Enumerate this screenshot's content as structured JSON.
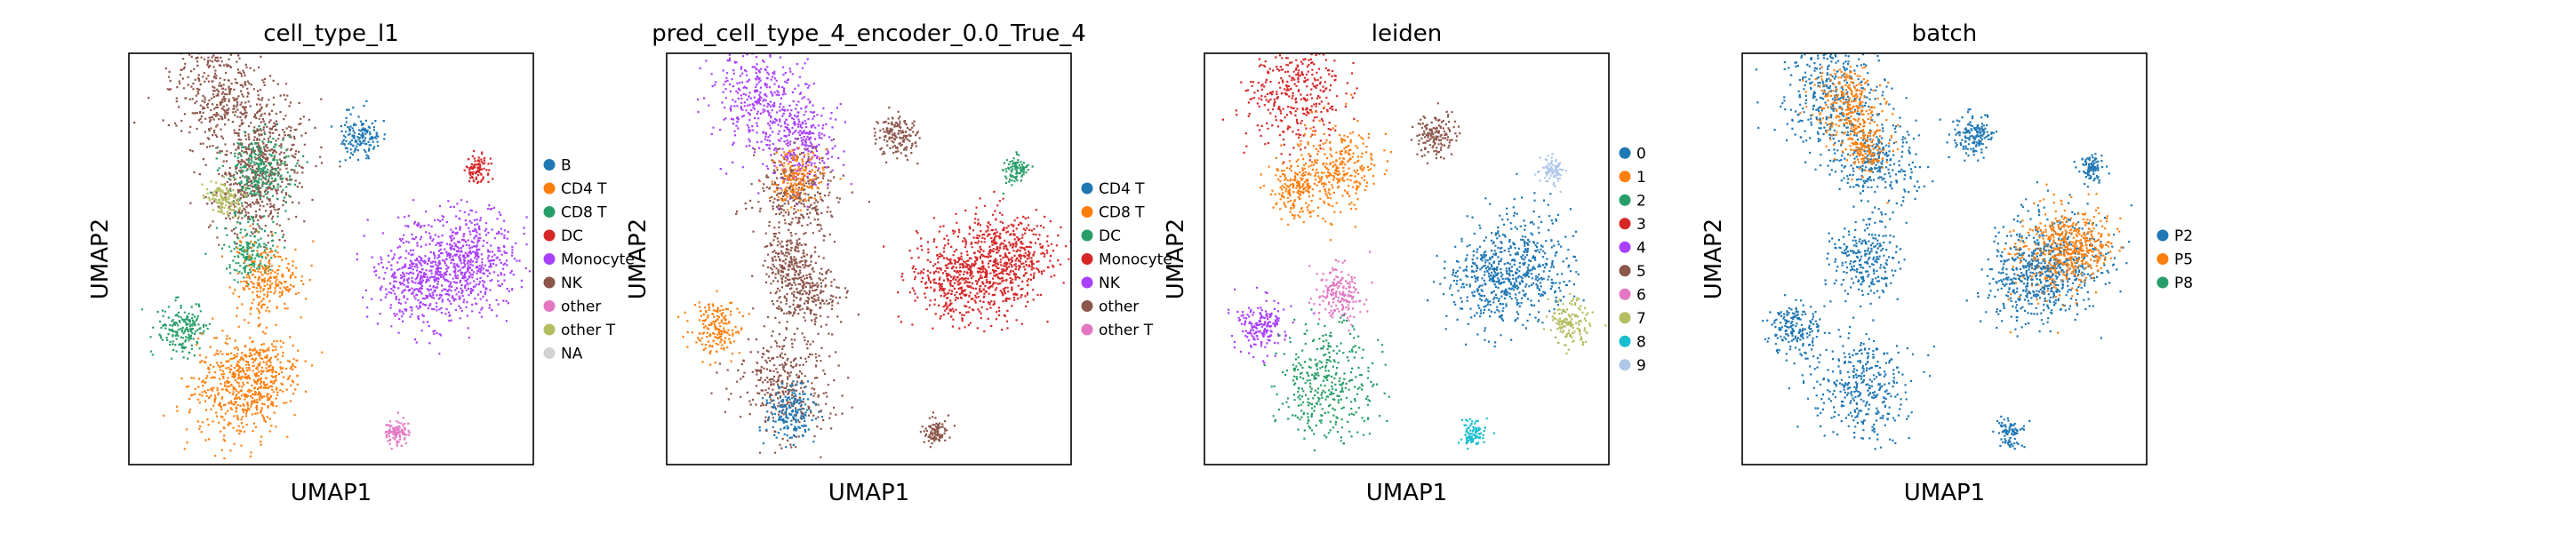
{
  "chart_data": [
    {
      "type": "scatter",
      "title": "cell_type_l1",
      "xlabel": "UMAP1",
      "ylabel": "UMAP2",
      "legend": [
        {
          "label": "B",
          "color": "#1f77b4"
        },
        {
          "label": "CD4 T",
          "color": "#ff7f0e"
        },
        {
          "label": "CD8 T",
          "color": "#279e68"
        },
        {
          "label": "DC",
          "color": "#d62728"
        },
        {
          "label": "Monocyte",
          "color": "#aa40fc"
        },
        {
          "label": "NK",
          "color": "#8c564b"
        },
        {
          "label": "other",
          "color": "#e377c2"
        },
        {
          "label": "other T",
          "color": "#b5bd61"
        },
        {
          "label": "NA",
          "color": "#d3d3d3"
        }
      ],
      "legend_position": "right",
      "clusters": [
        {
          "label": "NK",
          "x": 0.22,
          "y": 0.09,
          "spread": 0.06
        },
        {
          "label": "NK",
          "x": 0.33,
          "y": 0.22,
          "spread": 0.06
        },
        {
          "label": "NK",
          "x": 0.3,
          "y": 0.34,
          "spread": 0.05
        },
        {
          "label": "CD8 T",
          "x": 0.3,
          "y": 0.48,
          "spread": 0.03
        },
        {
          "label": "CD8 T",
          "x": 0.32,
          "y": 0.28,
          "spread": 0.04
        },
        {
          "label": "other T",
          "x": 0.23,
          "y": 0.35,
          "spread": 0.02
        },
        {
          "label": "CD8 T",
          "x": 0.13,
          "y": 0.67,
          "spread": 0.03
        },
        {
          "label": "CD4 T",
          "x": 0.34,
          "y": 0.55,
          "spread": 0.04
        },
        {
          "label": "CD4 T",
          "x": 0.31,
          "y": 0.78,
          "spread": 0.05
        },
        {
          "label": "CD4 T",
          "x": 0.26,
          "y": 0.82,
          "spread": 0.06
        },
        {
          "label": "B",
          "x": 0.57,
          "y": 0.2,
          "spread": 0.025
        },
        {
          "label": "Monocyte",
          "x": 0.79,
          "y": 0.51,
          "spread": 0.06
        },
        {
          "label": "Monocyte",
          "x": 0.7,
          "y": 0.55,
          "spread": 0.05
        },
        {
          "label": "Monocyte",
          "x": 0.86,
          "y": 0.5,
          "spread": 0.05
        },
        {
          "label": "DC",
          "x": 0.86,
          "y": 0.28,
          "spread": 0.015
        },
        {
          "label": "other",
          "x": 0.66,
          "y": 0.92,
          "spread": 0.015
        }
      ]
    },
    {
      "type": "scatter",
      "title": "pred_cell_type_4_encoder_0.0_True_4",
      "xlabel": "UMAP1",
      "ylabel": "UMAP2",
      "legend": [
        {
          "label": "CD4 T",
          "color": "#1f77b4"
        },
        {
          "label": "CD8 T",
          "color": "#ff7f0e"
        },
        {
          "label": "DC",
          "color": "#279e68"
        },
        {
          "label": "Monocyte",
          "color": "#d62728"
        },
        {
          "label": "NK",
          "color": "#aa40fc"
        },
        {
          "label": "other",
          "color": "#8c564b"
        },
        {
          "label": "other T",
          "color": "#e377c2"
        }
      ],
      "legend_position": "right",
      "clusters": [
        {
          "label": "NK",
          "x": 0.22,
          "y": 0.09,
          "spread": 0.06
        },
        {
          "label": "NK",
          "x": 0.33,
          "y": 0.22,
          "spread": 0.05
        },
        {
          "label": "other",
          "x": 0.32,
          "y": 0.34,
          "spread": 0.05
        },
        {
          "label": "CD8 T",
          "x": 0.32,
          "y": 0.3,
          "spread": 0.03
        },
        {
          "label": "other",
          "x": 0.3,
          "y": 0.5,
          "spread": 0.03
        },
        {
          "label": "CD8 T",
          "x": 0.12,
          "y": 0.67,
          "spread": 0.03
        },
        {
          "label": "other",
          "x": 0.34,
          "y": 0.58,
          "spread": 0.04
        },
        {
          "label": "other",
          "x": 0.29,
          "y": 0.8,
          "spread": 0.06
        },
        {
          "label": "CD4 T",
          "x": 0.3,
          "y": 0.87,
          "spread": 0.03
        },
        {
          "label": "other",
          "x": 0.57,
          "y": 0.2,
          "spread": 0.025
        },
        {
          "label": "Monocyte",
          "x": 0.79,
          "y": 0.51,
          "spread": 0.06
        },
        {
          "label": "Monocyte",
          "x": 0.7,
          "y": 0.55,
          "spread": 0.05
        },
        {
          "label": "Monocyte",
          "x": 0.86,
          "y": 0.5,
          "spread": 0.05
        },
        {
          "label": "DC",
          "x": 0.86,
          "y": 0.28,
          "spread": 0.015
        },
        {
          "label": "other",
          "x": 0.66,
          "y": 0.92,
          "spread": 0.015
        }
      ]
    },
    {
      "type": "scatter",
      "title": "leiden",
      "xlabel": "UMAP1",
      "ylabel": "UMAP2",
      "legend": [
        {
          "label": "0",
          "color": "#1f77b4"
        },
        {
          "label": "1",
          "color": "#ff7f0e"
        },
        {
          "label": "2",
          "color": "#279e68"
        },
        {
          "label": "3",
          "color": "#d62728"
        },
        {
          "label": "4",
          "color": "#aa40fc"
        },
        {
          "label": "5",
          "color": "#8c564b"
        },
        {
          "label": "6",
          "color": "#e377c2"
        },
        {
          "label": "7",
          "color": "#b5bd61"
        },
        {
          "label": "8",
          "color": "#17becf"
        },
        {
          "label": "9",
          "color": "#aec7e8"
        }
      ],
      "legend_position": "right",
      "clusters": [
        {
          "label": "3",
          "x": 0.22,
          "y": 0.1,
          "spread": 0.06
        },
        {
          "label": "1",
          "x": 0.33,
          "y": 0.27,
          "spread": 0.05
        },
        {
          "label": "1",
          "x": 0.22,
          "y": 0.33,
          "spread": 0.03
        },
        {
          "label": "6",
          "x": 0.33,
          "y": 0.58,
          "spread": 0.03
        },
        {
          "label": "4",
          "x": 0.14,
          "y": 0.66,
          "spread": 0.03
        },
        {
          "label": "2",
          "x": 0.3,
          "y": 0.8,
          "spread": 0.06
        },
        {
          "label": "5",
          "x": 0.57,
          "y": 0.2,
          "spread": 0.025
        },
        {
          "label": "0",
          "x": 0.79,
          "y": 0.51,
          "spread": 0.06
        },
        {
          "label": "0",
          "x": 0.7,
          "y": 0.55,
          "spread": 0.05
        },
        {
          "label": "7",
          "x": 0.9,
          "y": 0.65,
          "spread": 0.025
        },
        {
          "label": "9",
          "x": 0.86,
          "y": 0.28,
          "spread": 0.015
        },
        {
          "label": "8",
          "x": 0.66,
          "y": 0.92,
          "spread": 0.015
        }
      ]
    },
    {
      "type": "scatter",
      "title": "batch",
      "xlabel": "UMAP1",
      "ylabel": "UMAP2",
      "legend": [
        {
          "label": "P2",
          "color": "#1f77b4"
        },
        {
          "label": "P5",
          "color": "#ff7f0e"
        },
        {
          "label": "P8",
          "color": "#279e68"
        }
      ],
      "legend_position": "right",
      "clusters": [
        {
          "label": "P2",
          "x": 0.22,
          "y": 0.1,
          "spread": 0.06
        },
        {
          "label": "P5",
          "x": 0.25,
          "y": 0.12,
          "spread": 0.04
        },
        {
          "label": "P2",
          "x": 0.33,
          "y": 0.26,
          "spread": 0.05
        },
        {
          "label": "P5",
          "x": 0.3,
          "y": 0.22,
          "spread": 0.03
        },
        {
          "label": "P2",
          "x": 0.3,
          "y": 0.5,
          "spread": 0.04
        },
        {
          "label": "P2",
          "x": 0.13,
          "y": 0.67,
          "spread": 0.03
        },
        {
          "label": "P2",
          "x": 0.29,
          "y": 0.8,
          "spread": 0.06
        },
        {
          "label": "P2",
          "x": 0.57,
          "y": 0.2,
          "spread": 0.025
        },
        {
          "label": "P2",
          "x": 0.79,
          "y": 0.51,
          "spread": 0.06
        },
        {
          "label": "P5",
          "x": 0.76,
          "y": 0.48,
          "spread": 0.05
        },
        {
          "label": "P2",
          "x": 0.7,
          "y": 0.55,
          "spread": 0.05
        },
        {
          "label": "P5",
          "x": 0.84,
          "y": 0.46,
          "spread": 0.04
        },
        {
          "label": "P2",
          "x": 0.86,
          "y": 0.28,
          "spread": 0.015
        },
        {
          "label": "P2",
          "x": 0.66,
          "y": 0.92,
          "spread": 0.015
        }
      ]
    }
  ]
}
